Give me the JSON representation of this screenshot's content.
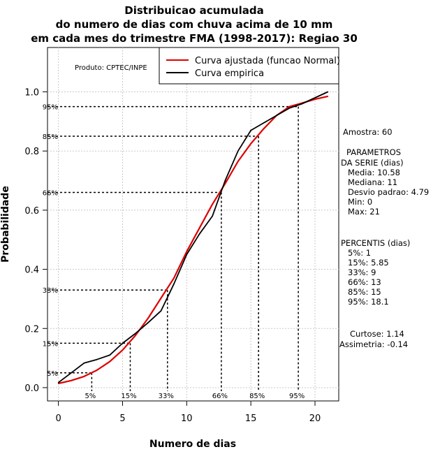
{
  "chart_data": {
    "type": "line",
    "title": [
      "Distribuicao acumulada",
      "do numero de dias com chuva acima de 10 mm",
      "em cada mes do trimestre FMA (1998-2017): Regiao 30"
    ],
    "xlabel": "Numero de dias",
    "ylabel": "Probabilidade",
    "xlim": [
      -0.85,
      21.85
    ],
    "ylim": [
      -0.045,
      1.15
    ],
    "x_ticks": [
      0,
      5,
      10,
      15,
      20
    ],
    "y_ticks": [
      0.0,
      0.2,
      0.4,
      0.6,
      0.8,
      1.0
    ],
    "x_tick_labels": [
      "0",
      "5",
      "10",
      "15",
      "20"
    ],
    "y_tick_labels": [
      "0.0",
      "0.2",
      "0.4",
      "0.6",
      "0.8",
      "1.0"
    ],
    "grid": true,
    "legend_position": "top-right",
    "product_label": "Produto: CPTEC/INPE",
    "series": [
      {
        "name": "Curva ajustada (funcao Normal)",
        "color": "#dd0000",
        "x": [
          0,
          1,
          2,
          3,
          4,
          5,
          6,
          7,
          8,
          9,
          10,
          11,
          12,
          13,
          14,
          15,
          16,
          17,
          18,
          19,
          20,
          21
        ],
        "y": [
          0.014,
          0.024,
          0.038,
          0.059,
          0.088,
          0.127,
          0.176,
          0.235,
          0.303,
          0.37,
          0.46,
          0.54,
          0.62,
          0.69,
          0.765,
          0.825,
          0.875,
          0.92,
          0.95,
          0.962,
          0.975,
          0.985
        ]
      },
      {
        "name": "Curva empirica",
        "color": "#000000",
        "x": [
          0,
          1,
          2,
          3,
          4,
          5,
          6,
          7,
          8,
          9,
          10,
          11,
          12,
          13,
          14,
          15,
          16,
          17,
          18,
          19,
          20,
          21
        ],
        "y": [
          0.017,
          0.05,
          0.083,
          0.095,
          0.11,
          0.15,
          0.183,
          0.22,
          0.26,
          0.35,
          0.45,
          0.52,
          0.58,
          0.7,
          0.8,
          0.87,
          0.895,
          0.92,
          0.945,
          0.96,
          0.98,
          1.0
        ]
      }
    ],
    "percentiles": [
      {
        "label": "5%",
        "x": 2.6,
        "y": 0.05
      },
      {
        "label": "15%",
        "x": 5.6,
        "y": 0.15
      },
      {
        "label": "33%",
        "x": 8.5,
        "y": 0.33
      },
      {
        "label": "66%",
        "x": 12.7,
        "y": 0.66
      },
      {
        "label": "85%",
        "x": 15.6,
        "y": 0.85
      },
      {
        "label": "95%",
        "x": 18.7,
        "y": 0.95
      }
    ]
  },
  "stats": {
    "amostra": "Amostra: 60",
    "param_title_1": "PARAMETROS",
    "param_title_2": "DA SERIE (dias)",
    "params": [
      "Media: 10.58",
      "Mediana: 11",
      "Desvio padrao: 4.79",
      "Min: 0",
      "Max: 21"
    ],
    "perc_title": "PERCENTIS (dias)",
    "percs": [
      "5%: 1",
      "15%: 5.85",
      "33%: 9",
      "66%: 13",
      "85%: 15",
      "95%: 18.1"
    ],
    "curtose": "Curtose: 1.14",
    "assimetria": "Assimetria: -0.14"
  }
}
